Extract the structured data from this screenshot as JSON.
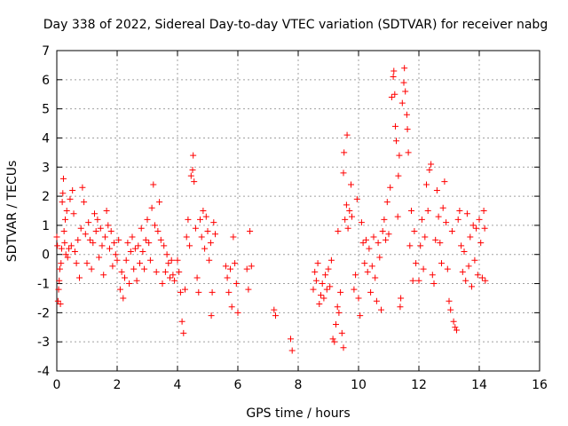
{
  "chart_data": {
    "type": "scatter",
    "title": "Day 338 of 2022, Sidereal Day-to-day VTEC variation (SDTVAR) for receiver nabg",
    "xlabel": "GPS time / hours",
    "ylabel": "SDTVAR / TECUs",
    "xlim": [
      0,
      16
    ],
    "ylim": [
      -4,
      7
    ],
    "xticks": [
      "0",
      "2",
      "4",
      "6",
      "8",
      "10",
      "12",
      "14",
      "16"
    ],
    "yticks": [
      "-4",
      "-3",
      "-2",
      "-1",
      "0",
      "1",
      "2",
      "3",
      "4",
      "5",
      "6",
      "7"
    ],
    "grid": true,
    "marker": "+",
    "color": "#ff0000",
    "series": [
      {
        "name": "SDTVAR",
        "points": [
          [
            0.0,
            0.6
          ],
          [
            0.02,
            0.3
          ],
          [
            0.04,
            -1.6
          ],
          [
            0.06,
            -1.2
          ],
          [
            0.08,
            -0.9
          ],
          [
            0.1,
            -0.5
          ],
          [
            0.12,
            -1.7
          ],
          [
            0.14,
            -0.3
          ],
          [
            0.16,
            0.2
          ],
          [
            0.18,
            1.8
          ],
          [
            0.2,
            2.1
          ],
          [
            0.22,
            2.6
          ],
          [
            0.24,
            0.8
          ],
          [
            0.26,
            0.4
          ],
          [
            0.28,
            1.2
          ],
          [
            0.3,
            0.0
          ],
          [
            0.33,
            1.5
          ],
          [
            0.36,
            -0.1
          ],
          [
            0.4,
            0.2
          ],
          [
            0.44,
            1.9
          ],
          [
            0.48,
            0.3
          ],
          [
            0.52,
            2.2
          ],
          [
            0.56,
            1.4
          ],
          [
            0.6,
            0.1
          ],
          [
            0.65,
            -0.3
          ],
          [
            0.7,
            0.5
          ],
          [
            0.75,
            -0.8
          ],
          [
            0.8,
            0.9
          ],
          [
            0.85,
            2.3
          ],
          [
            0.9,
            1.8
          ],
          [
            0.95,
            0.7
          ],
          [
            1.0,
            -0.3
          ],
          [
            1.05,
            1.1
          ],
          [
            1.1,
            0.5
          ],
          [
            1.15,
            -0.5
          ],
          [
            1.2,
            0.4
          ],
          [
            1.25,
            1.4
          ],
          [
            1.3,
            0.8
          ],
          [
            1.35,
            1.2
          ],
          [
            1.4,
            -0.1
          ],
          [
            1.45,
            0.9
          ],
          [
            1.5,
            0.3
          ],
          [
            1.55,
            -0.7
          ],
          [
            1.6,
            0.6
          ],
          [
            1.65,
            1.5
          ],
          [
            1.7,
            1.0
          ],
          [
            1.75,
            0.2
          ],
          [
            1.8,
            0.8
          ],
          [
            1.85,
            -0.4
          ],
          [
            1.9,
            0.4
          ],
          [
            1.95,
            0.0
          ],
          [
            2.0,
            -0.2
          ],
          [
            2.05,
            0.5
          ],
          [
            2.1,
            -1.2
          ],
          [
            2.15,
            -0.6
          ],
          [
            2.2,
            -1.5
          ],
          [
            2.25,
            -0.8
          ],
          [
            2.3,
            -0.2
          ],
          [
            2.35,
            0.4
          ],
          [
            2.4,
            -1.0
          ],
          [
            2.45,
            0.1
          ],
          [
            2.5,
            0.6
          ],
          [
            2.55,
            -0.5
          ],
          [
            2.6,
            0.2
          ],
          [
            2.65,
            -0.9
          ],
          [
            2.7,
            0.3
          ],
          [
            2.75,
            -0.3
          ],
          [
            2.8,
            0.9
          ],
          [
            2.85,
            0.1
          ],
          [
            2.9,
            -0.5
          ],
          [
            2.95,
            0.5
          ],
          [
            3.0,
            1.2
          ],
          [
            3.05,
            0.4
          ],
          [
            3.1,
            -0.2
          ],
          [
            3.15,
            1.6
          ],
          [
            3.2,
            2.4
          ],
          [
            3.25,
            1.0
          ],
          [
            3.3,
            -0.6
          ],
          [
            3.35,
            0.8
          ],
          [
            3.4,
            1.8
          ],
          [
            3.45,
            0.5
          ],
          [
            3.5,
            -1.0
          ],
          [
            3.55,
            0.3
          ],
          [
            3.6,
            -0.6
          ],
          [
            3.65,
            0.0
          ],
          [
            3.7,
            -0.3
          ],
          [
            3.75,
            -0.8
          ],
          [
            3.8,
            -0.2
          ],
          [
            3.85,
            -0.7
          ],
          [
            3.9,
            -0.9
          ],
          [
            4.0,
            -0.2
          ],
          [
            4.05,
            -0.6
          ],
          [
            4.1,
            -1.3
          ],
          [
            4.15,
            -2.3
          ],
          [
            4.2,
            -2.7
          ],
          [
            4.25,
            -1.2
          ],
          [
            4.3,
            0.6
          ],
          [
            4.35,
            1.2
          ],
          [
            4.4,
            0.3
          ],
          [
            4.45,
            2.7
          ],
          [
            4.5,
            2.9
          ],
          [
            4.52,
            3.4
          ],
          [
            4.55,
            2.5
          ],
          [
            4.6,
            0.9
          ],
          [
            4.65,
            -0.8
          ],
          [
            4.7,
            -1.3
          ],
          [
            4.75,
            1.2
          ],
          [
            4.8,
            0.6
          ],
          [
            4.85,
            1.5
          ],
          [
            4.9,
            0.2
          ],
          [
            4.95,
            1.3
          ],
          [
            5.0,
            0.8
          ],
          [
            5.05,
            -0.2
          ],
          [
            5.1,
            0.4
          ],
          [
            5.12,
            -2.1
          ],
          [
            5.15,
            -1.3
          ],
          [
            5.2,
            1.1
          ],
          [
            5.25,
            0.7
          ],
          [
            5.6,
            -0.4
          ],
          [
            5.65,
            -0.8
          ],
          [
            5.7,
            -1.3
          ],
          [
            5.75,
            -0.5
          ],
          [
            5.8,
            -1.8
          ],
          [
            5.85,
            0.6
          ],
          [
            5.9,
            -0.3
          ],
          [
            5.95,
            -1.0
          ],
          [
            6.0,
            -2.0
          ],
          [
            6.3,
            -0.5
          ],
          [
            6.35,
            -1.2
          ],
          [
            6.4,
            0.8
          ],
          [
            6.45,
            -0.4
          ],
          [
            7.2,
            -1.9
          ],
          [
            7.25,
            -2.1
          ],
          [
            7.75,
            -2.9
          ],
          [
            7.8,
            -3.3
          ],
          [
            8.5,
            -1.2
          ],
          [
            8.55,
            -0.6
          ],
          [
            8.6,
            -0.9
          ],
          [
            8.65,
            -0.3
          ],
          [
            8.7,
            -1.7
          ],
          [
            8.75,
            -1.4
          ],
          [
            8.8,
            -1.0
          ],
          [
            8.85,
            -1.5
          ],
          [
            8.9,
            -0.7
          ],
          [
            8.95,
            -1.2
          ],
          [
            9.0,
            -0.5
          ],
          [
            9.05,
            -1.1
          ],
          [
            9.1,
            -0.2
          ],
          [
            9.15,
            -2.9
          ],
          [
            9.2,
            -3.0
          ],
          [
            9.25,
            -2.4
          ],
          [
            9.3,
            -1.8
          ],
          [
            9.32,
            0.8
          ],
          [
            9.35,
            -2.0
          ],
          [
            9.4,
            -1.3
          ],
          [
            9.45,
            -2.7
          ],
          [
            9.5,
            -3.2
          ],
          [
            9.5,
            2.8
          ],
          [
            9.52,
            3.5
          ],
          [
            9.55,
            1.2
          ],
          [
            9.6,
            1.7
          ],
          [
            9.62,
            4.1
          ],
          [
            9.65,
            0.9
          ],
          [
            9.7,
            1.5
          ],
          [
            9.75,
            2.4
          ],
          [
            9.78,
            1.3
          ],
          [
            9.85,
            -1.2
          ],
          [
            9.9,
            -0.7
          ],
          [
            9.95,
            1.9
          ],
          [
            10.0,
            -1.5
          ],
          [
            10.05,
            -2.1
          ],
          [
            10.1,
            1.1
          ],
          [
            10.15,
            0.4
          ],
          [
            10.2,
            -0.3
          ],
          [
            10.25,
            0.5
          ],
          [
            10.3,
            -0.6
          ],
          [
            10.35,
            0.2
          ],
          [
            10.4,
            -1.3
          ],
          [
            10.45,
            -0.4
          ],
          [
            10.5,
            0.6
          ],
          [
            10.55,
            -0.8
          ],
          [
            10.6,
            -1.6
          ],
          [
            10.65,
            0.4
          ],
          [
            10.7,
            -0.1
          ],
          [
            10.75,
            -1.9
          ],
          [
            10.8,
            0.8
          ],
          [
            10.85,
            1.2
          ],
          [
            10.9,
            0.5
          ],
          [
            10.95,
            1.8
          ],
          [
            11.0,
            0.7
          ],
          [
            11.05,
            2.3
          ],
          [
            11.1,
            5.4
          ],
          [
            11.15,
            6.1
          ],
          [
            11.17,
            6.3
          ],
          [
            11.2,
            5.5
          ],
          [
            11.22,
            4.4
          ],
          [
            11.25,
            3.9
          ],
          [
            11.3,
            1.3
          ],
          [
            11.32,
            2.7
          ],
          [
            11.35,
            3.4
          ],
          [
            11.38,
            -1.8
          ],
          [
            11.4,
            -1.5
          ],
          [
            11.45,
            5.2
          ],
          [
            11.5,
            5.9
          ],
          [
            11.52,
            6.4
          ],
          [
            11.55,
            5.6
          ],
          [
            11.6,
            4.8
          ],
          [
            11.62,
            4.3
          ],
          [
            11.65,
            3.5
          ],
          [
            11.7,
            0.3
          ],
          [
            11.75,
            1.5
          ],
          [
            11.8,
            -0.9
          ],
          [
            11.85,
            0.8
          ],
          [
            11.9,
            -0.3
          ],
          [
            12.0,
            -0.9
          ],
          [
            12.05,
            0.3
          ],
          [
            12.1,
            1.2
          ],
          [
            12.15,
            -0.5
          ],
          [
            12.2,
            0.6
          ],
          [
            12.25,
            2.4
          ],
          [
            12.3,
            1.5
          ],
          [
            12.35,
            2.9
          ],
          [
            12.4,
            3.1
          ],
          [
            12.45,
            -0.7
          ],
          [
            12.5,
            -1.0
          ],
          [
            12.55,
            0.5
          ],
          [
            12.6,
            2.2
          ],
          [
            12.65,
            1.3
          ],
          [
            12.7,
            0.4
          ],
          [
            12.75,
            -0.3
          ],
          [
            12.8,
            1.6
          ],
          [
            12.85,
            2.5
          ],
          [
            12.9,
            1.1
          ],
          [
            12.95,
            -0.5
          ],
          [
            13.0,
            -1.6
          ],
          [
            13.05,
            -1.9
          ],
          [
            13.1,
            0.8
          ],
          [
            13.15,
            -2.3
          ],
          [
            13.2,
            -2.5
          ],
          [
            13.25,
            -2.6
          ],
          [
            13.3,
            1.2
          ],
          [
            13.35,
            1.5
          ],
          [
            13.4,
            0.3
          ],
          [
            13.45,
            -0.6
          ],
          [
            13.5,
            0.1
          ],
          [
            13.55,
            -0.9
          ],
          [
            13.6,
            1.4
          ],
          [
            13.65,
            -0.4
          ],
          [
            13.7,
            0.6
          ],
          [
            13.75,
            -1.1
          ],
          [
            13.8,
            1.0
          ],
          [
            13.85,
            -0.2
          ],
          [
            13.9,
            0.9
          ],
          [
            13.95,
            -0.7
          ],
          [
            14.0,
            1.2
          ],
          [
            14.05,
            0.4
          ],
          [
            14.1,
            -0.8
          ],
          [
            14.15,
            1.5
          ],
          [
            14.18,
            0.9
          ],
          [
            14.2,
            -0.9
          ]
        ]
      }
    ]
  }
}
